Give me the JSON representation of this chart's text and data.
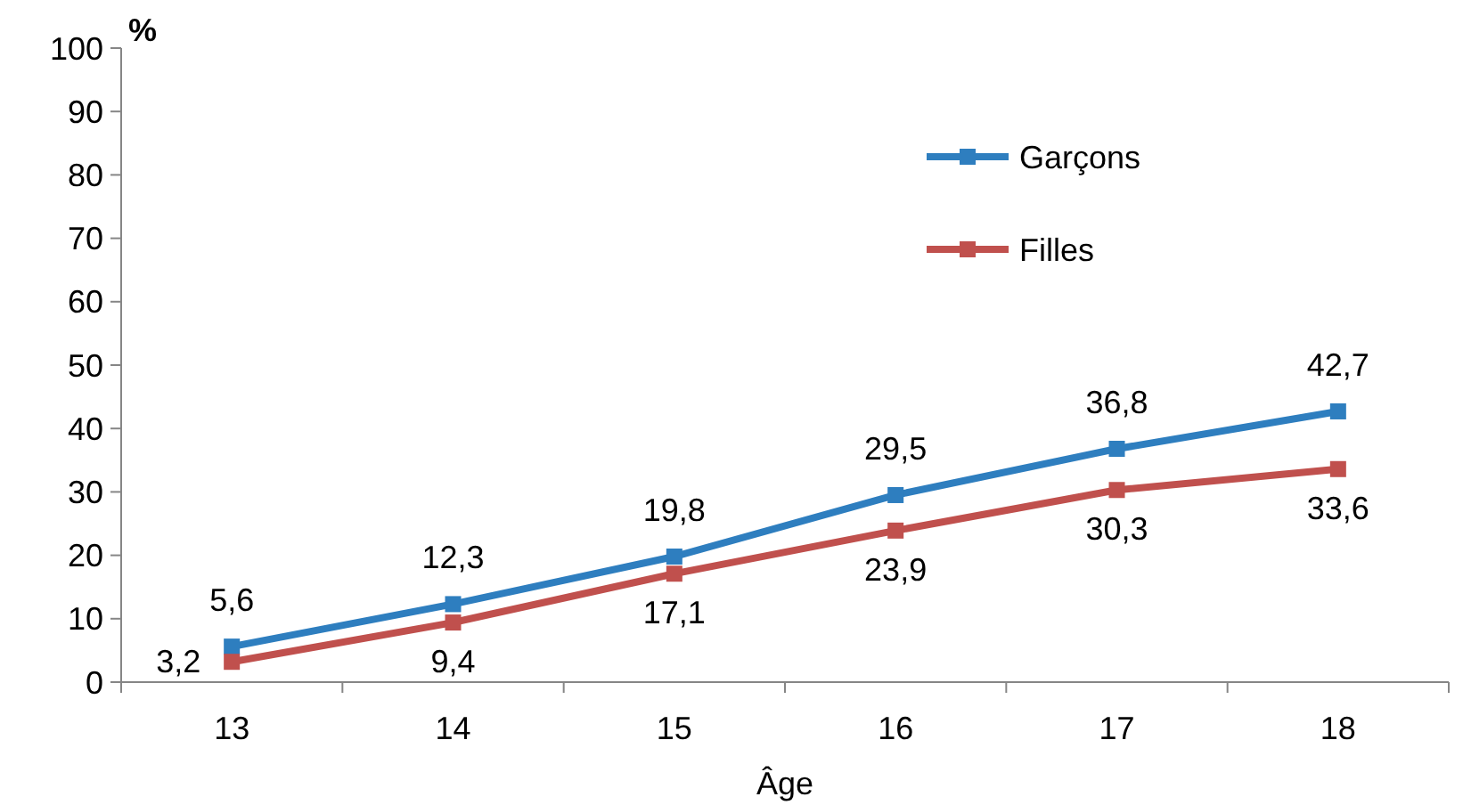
{
  "chart_data": {
    "type": "line",
    "ylabel": "%",
    "xlabel": "Âge",
    "categories": [
      "13",
      "14",
      "15",
      "16",
      "17",
      "18"
    ],
    "series": [
      {
        "name": "Garçons",
        "color": "#2e7ebf",
        "values": [
          5.6,
          12.3,
          19.8,
          29.5,
          36.8,
          42.7
        ],
        "value_labels": [
          "5,6",
          "12,3",
          "19,8",
          "29,5",
          "36,8",
          "42,7"
        ]
      },
      {
        "name": "Filles",
        "color": "#c0504d",
        "values": [
          3.2,
          9.4,
          17.1,
          23.9,
          30.3,
          33.6
        ],
        "value_labels": [
          "3,2",
          "9,4",
          "17,1",
          "23,9",
          "30,3",
          "33,6"
        ]
      }
    ],
    "ylim": [
      0,
      100
    ],
    "yticks": [
      0,
      10,
      20,
      30,
      40,
      50,
      60,
      70,
      80,
      90,
      100
    ],
    "grid": false,
    "legend": "top right",
    "marker": "square",
    "line_style": "solid"
  }
}
